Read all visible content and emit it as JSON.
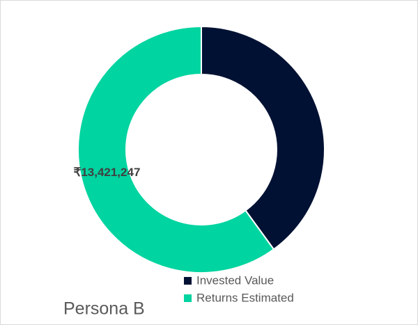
{
  "chart_data": {
    "type": "donut",
    "title": "Persona B",
    "categories": [
      "Invested Value",
      "Returns Estimated"
    ],
    "values": [
      8950000,
      13421247
    ],
    "value_labels": [
      null,
      "₹13,421,247"
    ],
    "colors": [
      "#001133",
      "#00d4a0"
    ]
  }
}
